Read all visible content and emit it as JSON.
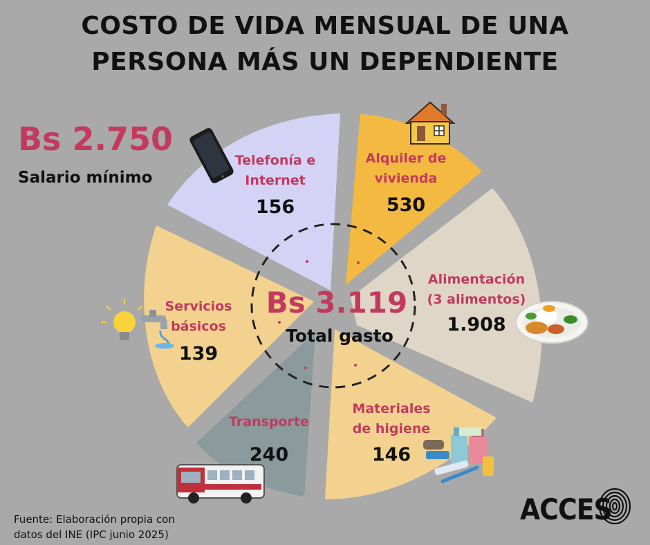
{
  "title_line1": "COSTO DE VIDA MENSUAL DE UNA",
  "title_line2": "PERSONA MÁS UN DEPENDIENTE",
  "salary": {
    "value": "Bs 2.750",
    "label": "Salario mínimo"
  },
  "total": {
    "value": "Bs 3.119",
    "label": "Total gasto"
  },
  "source_line1": "Fuente: Elaboración propia con",
  "source_line2": "datos del INE (IPC junio 2025)",
  "brand": "ACCES",
  "chart_data": {
    "type": "pie",
    "total": 3119,
    "slices": [
      {
        "label": "Telefonía e Internet",
        "label_lines": [
          "Telefonía e",
          "Internet"
        ],
        "value": 156,
        "value_text": "156",
        "color": "#d5d3f5",
        "icon": "smartphone-icon"
      },
      {
        "label": "Alquiler de vivienda",
        "label_lines": [
          "Alquiler de",
          "vivienda"
        ],
        "value": 530,
        "value_text": "530",
        "color": "#f4b940",
        "icon": "house-icon"
      },
      {
        "label": "Alimentación (3 alimentos)",
        "label_lines": [
          "Alimentación",
          "(3 alimentos)"
        ],
        "value": 1908,
        "value_text": "1.908",
        "color": "#e0d6c8",
        "icon": "food-plate-icon"
      },
      {
        "label": "Materiales de higiene",
        "label_lines": [
          "Materiales",
          "de higiene"
        ],
        "value": 146,
        "value_text": "146",
        "color": "#f3d290",
        "icon": "hygiene-products-icon"
      },
      {
        "label": "Transporte",
        "label_lines": [
          "Transporte"
        ],
        "value": 240,
        "value_text": "240",
        "color": "#8b9a9c",
        "icon": "bus-icon"
      },
      {
        "label": "Servicios básicos",
        "label_lines": [
          "Servicios",
          "básicos"
        ],
        "value": 139,
        "value_text": "139",
        "color": "#f3d290",
        "icon": "lightbulb-faucet-icon"
      }
    ],
    "label_color": "#c23a5e",
    "value_color": "#111111"
  }
}
